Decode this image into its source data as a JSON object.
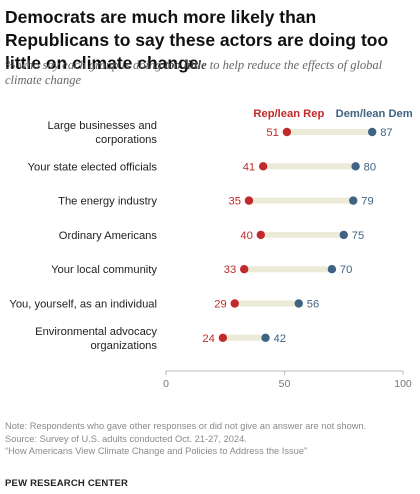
{
  "header": {
    "title": "Democrats are much more likely than Republicans to say these actors are doing too little on climate change",
    "subtitle_pre": "% who say each group is doing ",
    "subtitle_em": "too little",
    "subtitle_post": " to help reduce the effects of global climate change"
  },
  "footer": {
    "note": "Note: Respondents who gave other responses or did not give an answer are not shown.",
    "source": "Source: Survey of U.S. adults conducted Oct. 21-27, 2024.",
    "report": "“How Americans View Climate Change and Policies to Address the Issue”",
    "brand": "PEW RESEARCH CENTER"
  },
  "colors": {
    "rep": "#c12a2a",
    "dem": "#3f6382",
    "connector": "#ecebd8",
    "axis": "#bbbbbb"
  },
  "chart_data": {
    "type": "dot",
    "xlim": [
      0,
      100
    ],
    "x_ticks": [
      0,
      50,
      100
    ],
    "categories": [
      [
        "Large businesses and",
        "corporations"
      ],
      [
        "Your state elected officials"
      ],
      [
        "The energy industry"
      ],
      [
        "Ordinary Americans"
      ],
      [
        "Your local community"
      ],
      [
        "You, yourself, as an individual"
      ],
      [
        "Environmental advocacy",
        "organizations"
      ]
    ],
    "series": [
      {
        "name": "Rep/lean Rep",
        "values": [
          51,
          41,
          35,
          40,
          33,
          29,
          24
        ]
      },
      {
        "name": "Dem/lean Dem",
        "values": [
          87,
          80,
          79,
          75,
          70,
          56,
          42
        ]
      }
    ]
  }
}
